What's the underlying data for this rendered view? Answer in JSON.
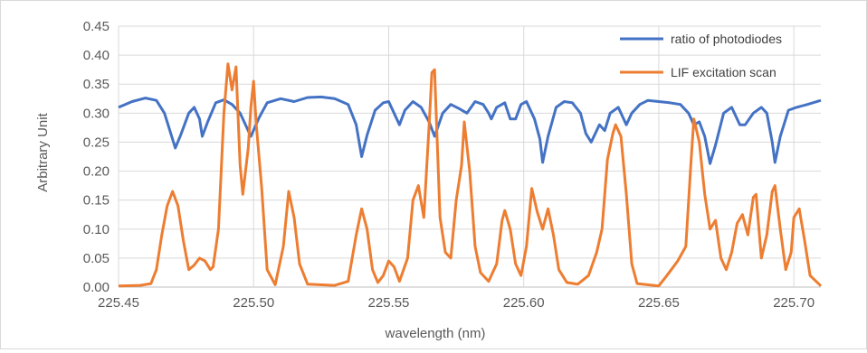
{
  "chart_data": {
    "type": "line",
    "title": "",
    "xlabel": "wavelength (nm)",
    "ylabel": "Arbitrary Unit",
    "xlim": [
      225.45,
      225.71
    ],
    "ylim": [
      0,
      0.45
    ],
    "x_ticks": [
      225.45,
      225.5,
      225.55,
      225.6,
      225.65,
      225.7
    ],
    "x_tick_labels": [
      "225.45",
      "225.50",
      "225.55",
      "225.60",
      "225.65",
      "225.70"
    ],
    "y_ticks": [
      0,
      0.05,
      0.1,
      0.15,
      0.2,
      0.25,
      0.3,
      0.35,
      0.4,
      0.45
    ],
    "y_tick_labels": [
      "0.00",
      "0.05",
      "0.10",
      "0.15",
      "0.20",
      "0.25",
      "0.30",
      "0.35",
      "0.40",
      "0.45"
    ],
    "grid": true,
    "legend_position": "top-right",
    "series": [
      {
        "name": "ratio of photodiodes",
        "color": "#4472c4",
        "points": [
          [
            225.45,
            0.31
          ],
          [
            225.455,
            0.32
          ],
          [
            225.46,
            0.326
          ],
          [
            225.464,
            0.322
          ],
          [
            225.467,
            0.3
          ],
          [
            225.469,
            0.27
          ],
          [
            225.471,
            0.24
          ],
          [
            225.473,
            0.262
          ],
          [
            225.476,
            0.3
          ],
          [
            225.478,
            0.31
          ],
          [
            225.48,
            0.29
          ],
          [
            225.481,
            0.26
          ],
          [
            225.483,
            0.285
          ],
          [
            225.486,
            0.318
          ],
          [
            225.489,
            0.323
          ],
          [
            225.492,
            0.315
          ],
          [
            225.495,
            0.3
          ],
          [
            225.497,
            0.28
          ],
          [
            225.499,
            0.26
          ],
          [
            225.502,
            0.292
          ],
          [
            225.505,
            0.318
          ],
          [
            225.51,
            0.325
          ],
          [
            225.515,
            0.32
          ],
          [
            225.52,
            0.327
          ],
          [
            225.525,
            0.328
          ],
          [
            225.53,
            0.325
          ],
          [
            225.535,
            0.315
          ],
          [
            225.538,
            0.28
          ],
          [
            225.54,
            0.225
          ],
          [
            225.542,
            0.262
          ],
          [
            225.545,
            0.305
          ],
          [
            225.548,
            0.318
          ],
          [
            225.55,
            0.32
          ],
          [
            225.552,
            0.3
          ],
          [
            225.554,
            0.28
          ],
          [
            225.556,
            0.305
          ],
          [
            225.559,
            0.32
          ],
          [
            225.562,
            0.31
          ],
          [
            225.565,
            0.285
          ],
          [
            225.567,
            0.26
          ],
          [
            225.57,
            0.3
          ],
          [
            225.573,
            0.315
          ],
          [
            225.576,
            0.308
          ],
          [
            225.579,
            0.3
          ],
          [
            225.582,
            0.32
          ],
          [
            225.585,
            0.315
          ],
          [
            225.587,
            0.3
          ],
          [
            225.588,
            0.29
          ],
          [
            225.59,
            0.31
          ],
          [
            225.593,
            0.318
          ],
          [
            225.595,
            0.29
          ],
          [
            225.597,
            0.29
          ],
          [
            225.599,
            0.315
          ],
          [
            225.601,
            0.32
          ],
          [
            225.604,
            0.29
          ],
          [
            225.606,
            0.255
          ],
          [
            225.607,
            0.215
          ],
          [
            225.609,
            0.26
          ],
          [
            225.612,
            0.31
          ],
          [
            225.615,
            0.32
          ],
          [
            225.618,
            0.318
          ],
          [
            225.621,
            0.3
          ],
          [
            225.623,
            0.265
          ],
          [
            225.625,
            0.25
          ],
          [
            225.628,
            0.28
          ],
          [
            225.63,
            0.27
          ],
          [
            225.632,
            0.3
          ],
          [
            225.635,
            0.31
          ],
          [
            225.638,
            0.28
          ],
          [
            225.64,
            0.3
          ],
          [
            225.643,
            0.315
          ],
          [
            225.646,
            0.322
          ],
          [
            225.65,
            0.32
          ],
          [
            225.654,
            0.318
          ],
          [
            225.658,
            0.315
          ],
          [
            225.661,
            0.3
          ],
          [
            225.663,
            0.28
          ],
          [
            225.665,
            0.285
          ],
          [
            225.667,
            0.26
          ],
          [
            225.669,
            0.213
          ],
          [
            225.671,
            0.245
          ],
          [
            225.674,
            0.3
          ],
          [
            225.677,
            0.31
          ],
          [
            225.68,
            0.28
          ],
          [
            225.682,
            0.28
          ],
          [
            225.685,
            0.3
          ],
          [
            225.688,
            0.31
          ],
          [
            225.69,
            0.3
          ],
          [
            225.692,
            0.25
          ],
          [
            225.693,
            0.215
          ],
          [
            225.695,
            0.26
          ],
          [
            225.698,
            0.305
          ],
          [
            225.701,
            0.31
          ],
          [
            225.705,
            0.315
          ],
          [
            225.71,
            0.322
          ]
        ]
      },
      {
        "name": "LIF excitation scan",
        "color": "#ed7d31",
        "points": [
          [
            225.45,
            0.002
          ],
          [
            225.458,
            0.003
          ],
          [
            225.462,
            0.006
          ],
          [
            225.464,
            0.03
          ],
          [
            225.466,
            0.09
          ],
          [
            225.468,
            0.14
          ],
          [
            225.47,
            0.165
          ],
          [
            225.472,
            0.14
          ],
          [
            225.474,
            0.08
          ],
          [
            225.476,
            0.03
          ],
          [
            225.478,
            0.038
          ],
          [
            225.48,
            0.05
          ],
          [
            225.482,
            0.045
          ],
          [
            225.484,
            0.03
          ],
          [
            225.485,
            0.035
          ],
          [
            225.487,
            0.1
          ],
          [
            225.489,
            0.3
          ],
          [
            225.4905,
            0.385
          ],
          [
            225.492,
            0.34
          ],
          [
            225.4935,
            0.38
          ],
          [
            225.495,
            0.21
          ],
          [
            225.496,
            0.16
          ],
          [
            225.498,
            0.24
          ],
          [
            225.499,
            0.31
          ],
          [
            225.5,
            0.355
          ],
          [
            225.501,
            0.28
          ],
          [
            225.503,
            0.17
          ],
          [
            225.505,
            0.03
          ],
          [
            225.508,
            0.004
          ],
          [
            225.511,
            0.07
          ],
          [
            225.513,
            0.165
          ],
          [
            225.515,
            0.12
          ],
          [
            225.517,
            0.04
          ],
          [
            225.52,
            0.005
          ],
          [
            225.53,
            0.003
          ],
          [
            225.535,
            0.01
          ],
          [
            225.538,
            0.09
          ],
          [
            225.54,
            0.135
          ],
          [
            225.542,
            0.1
          ],
          [
            225.544,
            0.03
          ],
          [
            225.546,
            0.008
          ],
          [
            225.548,
            0.02
          ],
          [
            225.55,
            0.045
          ],
          [
            225.552,
            0.035
          ],
          [
            225.554,
            0.01
          ],
          [
            225.557,
            0.05
          ],
          [
            225.559,
            0.15
          ],
          [
            225.561,
            0.175
          ],
          [
            225.563,
            0.12
          ],
          [
            225.565,
            0.28
          ],
          [
            225.566,
            0.37
          ],
          [
            225.567,
            0.375
          ],
          [
            225.569,
            0.12
          ],
          [
            225.571,
            0.06
          ],
          [
            225.573,
            0.05
          ],
          [
            225.575,
            0.15
          ],
          [
            225.577,
            0.21
          ],
          [
            225.578,
            0.285
          ],
          [
            225.58,
            0.2
          ],
          [
            225.582,
            0.07
          ],
          [
            225.584,
            0.025
          ],
          [
            225.587,
            0.01
          ],
          [
            225.59,
            0.04
          ],
          [
            225.592,
            0.115
          ],
          [
            225.593,
            0.132
          ],
          [
            225.595,
            0.1
          ],
          [
            225.597,
            0.04
          ],
          [
            225.599,
            0.02
          ],
          [
            225.601,
            0.07
          ],
          [
            225.603,
            0.17
          ],
          [
            225.605,
            0.13
          ],
          [
            225.607,
            0.1
          ],
          [
            225.609,
            0.135
          ],
          [
            225.611,
            0.09
          ],
          [
            225.613,
            0.03
          ],
          [
            225.616,
            0.008
          ],
          [
            225.62,
            0.005
          ],
          [
            225.624,
            0.02
          ],
          [
            225.627,
            0.06
          ],
          [
            225.629,
            0.1
          ],
          [
            225.631,
            0.22
          ],
          [
            225.633,
            0.265
          ],
          [
            225.634,
            0.28
          ],
          [
            225.636,
            0.26
          ],
          [
            225.638,
            0.16
          ],
          [
            225.64,
            0.04
          ],
          [
            225.642,
            0.006
          ],
          [
            225.65,
            0.002
          ],
          [
            225.653,
            0.02
          ],
          [
            225.657,
            0.045
          ],
          [
            225.66,
            0.07
          ],
          [
            225.662,
            0.22
          ],
          [
            225.663,
            0.29
          ],
          [
            225.665,
            0.25
          ],
          [
            225.667,
            0.16
          ],
          [
            225.669,
            0.1
          ],
          [
            225.671,
            0.115
          ],
          [
            225.673,
            0.05
          ],
          [
            225.675,
            0.03
          ],
          [
            225.677,
            0.06
          ],
          [
            225.679,
            0.11
          ],
          [
            225.681,
            0.125
          ],
          [
            225.683,
            0.09
          ],
          [
            225.685,
            0.155
          ],
          [
            225.686,
            0.16
          ],
          [
            225.688,
            0.05
          ],
          [
            225.69,
            0.09
          ],
          [
            225.692,
            0.165
          ],
          [
            225.693,
            0.175
          ],
          [
            225.695,
            0.1
          ],
          [
            225.697,
            0.03
          ],
          [
            225.699,
            0.06
          ],
          [
            225.7,
            0.12
          ],
          [
            225.702,
            0.135
          ],
          [
            225.704,
            0.08
          ],
          [
            225.706,
            0.02
          ],
          [
            225.71,
            0.002
          ]
        ]
      }
    ]
  }
}
